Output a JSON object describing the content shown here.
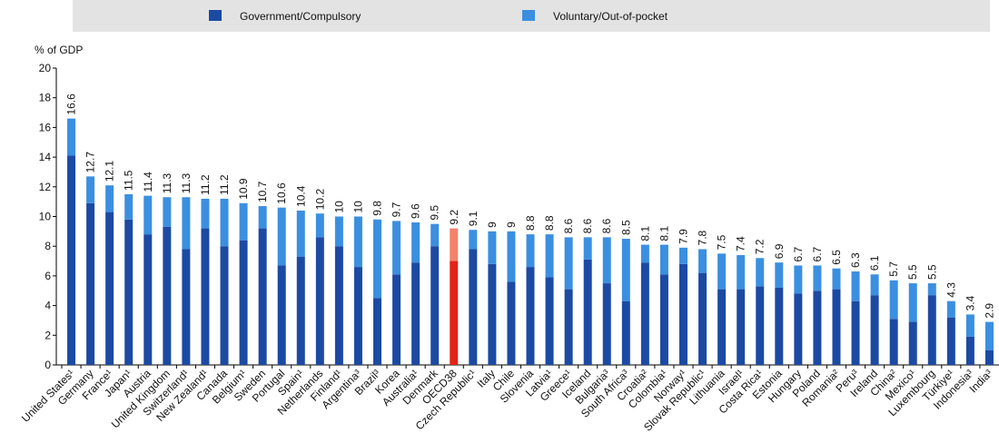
{
  "chart_data": {
    "type": "stacked_bar",
    "y_label": "% of GDP",
    "categories": [
      "United States¹",
      "Germany",
      "France¹",
      "Japan¹",
      "Austria",
      "United Kingdom",
      "Switzerland¹",
      "New Zealand¹",
      "Canada",
      "Belgium¹",
      "Sweden",
      "Portugal",
      "Spain¹",
      "Netherlands",
      "Finland¹",
      "Argentina³",
      "Brazil³",
      "Korea",
      "Australia¹",
      "Denmark",
      "OECD38",
      "Czech Republic¹",
      "Italy",
      "Chile",
      "Slovenia",
      "Latvia¹",
      "Greece¹",
      "Iceland",
      "Bulgaria³",
      "South Africa³",
      "Croatia²",
      "Colombia¹",
      "Norway¹",
      "Slovak Republic¹",
      "Lithuania",
      "Israel¹",
      "Costa Rica¹",
      "Estonia",
      "Hungary",
      "Poland",
      "Romania²",
      "Peru³",
      "Ireland",
      "China²",
      "Mexico¹",
      "Luxembourg",
      "Türkiye¹",
      "Indonesia³",
      "India³"
    ],
    "series": [
      {
        "name": "Government/Compulsory",
        "color": "#1c4aa3",
        "highlight_color": "#e2231a",
        "values": [
          14.1,
          10.9,
          10.3,
          9.8,
          8.8,
          9.3,
          7.8,
          9.2,
          8.0,
          8.4,
          9.2,
          6.7,
          7.3,
          8.6,
          8.0,
          6.6,
          4.5,
          6.1,
          6.9,
          8.0,
          7.0,
          7.8,
          6.8,
          5.6,
          6.6,
          5.9,
          5.1,
          7.1,
          5.5,
          4.3,
          6.9,
          6.1,
          6.8,
          6.2,
          5.1,
          5.1,
          5.3,
          5.2,
          4.8,
          5.0,
          5.1,
          4.3,
          4.7,
          3.1,
          2.9,
          4.7,
          3.2,
          1.9,
          1.0
        ]
      },
      {
        "name": "Voluntary/Out-of-pocket",
        "color": "#3b8fe0",
        "highlight_color": "#f2826a",
        "values": [
          2.5,
          1.8,
          1.8,
          1.7,
          2.6,
          2.0,
          3.5,
          2.0,
          3.2,
          2.5,
          1.5,
          3.9,
          3.1,
          1.6,
          2.0,
          3.4,
          5.3,
          3.6,
          2.7,
          1.5,
          2.2,
          1.3,
          2.2,
          3.4,
          2.2,
          2.9,
          3.5,
          1.5,
          3.1,
          4.2,
          1.2,
          2.0,
          1.1,
          1.6,
          2.4,
          2.3,
          1.9,
          1.7,
          1.9,
          1.7,
          1.4,
          2.0,
          1.4,
          2.6,
          2.6,
          0.8,
          1.1,
          1.5,
          1.9
        ]
      }
    ],
    "totals": [
      16.6,
      12.7,
      12.1,
      11.5,
      11.4,
      11.3,
      11.3,
      11.2,
      11.2,
      10.9,
      10.7,
      10.6,
      10.4,
      10.2,
      10.0,
      10.0,
      9.8,
      9.7,
      9.6,
      9.5,
      9.2,
      9.1,
      9.0,
      9.0,
      8.8,
      8.8,
      8.6,
      8.6,
      8.6,
      8.5,
      8.1,
      8.1,
      7.9,
      7.8,
      7.5,
      7.4,
      7.2,
      6.9,
      6.7,
      6.7,
      6.5,
      6.3,
      6.1,
      5.7,
      5.5,
      5.5,
      4.3,
      3.4,
      2.9
    ],
    "highlight": "OECD38",
    "ylim": [
      0,
      20
    ],
    "yticks": [
      0,
      2,
      4,
      6,
      8,
      10,
      12,
      14,
      16,
      18,
      20
    ],
    "grid": false
  }
}
